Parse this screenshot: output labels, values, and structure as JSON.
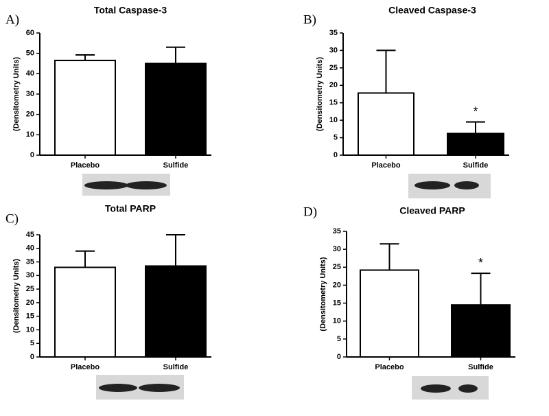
{
  "chart_data": [
    {
      "type": "bar",
      "panel": "A)",
      "title": "Total Caspase-3",
      "ylabel": "(Densitometry Units)",
      "categories": [
        "Placebo",
        "Sulfide"
      ],
      "values": [
        46.5,
        45
      ],
      "errors": [
        2.7,
        8
      ],
      "colors": [
        "#ffffff",
        "#000000"
      ],
      "annotations": [
        null,
        null
      ],
      "ylim": [
        0,
        60
      ],
      "yticks": [
        0,
        10,
        20,
        30,
        40,
        50,
        60
      ]
    },
    {
      "type": "bar",
      "panel": "B)",
      "title": "Cleaved Caspase-3",
      "ylabel": "(Densitometry Units)",
      "categories": [
        "Placebo",
        "Sulfide"
      ],
      "values": [
        17.8,
        6.2
      ],
      "errors": [
        12.2,
        3.3
      ],
      "colors": [
        "#ffffff",
        "#000000"
      ],
      "annotations": [
        null,
        "*"
      ],
      "ylim": [
        0,
        35
      ],
      "yticks": [
        0,
        5,
        10,
        15,
        20,
        25,
        30,
        35
      ]
    },
    {
      "type": "bar",
      "panel": "C)",
      "title": "Total PARP",
      "ylabel": "(Densitometry Units)",
      "categories": [
        "Placebo",
        "Sulfide"
      ],
      "values": [
        33,
        33.5
      ],
      "errors": [
        6,
        11.5
      ],
      "colors": [
        "#ffffff",
        "#000000"
      ],
      "annotations": [
        null,
        null
      ],
      "ylim": [
        0,
        45
      ],
      "yticks": [
        0,
        5,
        10,
        15,
        20,
        25,
        30,
        35,
        40,
        45
      ]
    },
    {
      "type": "bar",
      "panel": "D)",
      "title": "Cleaved PARP",
      "ylabel": "(Densitometry Units)",
      "categories": [
        "Placebo",
        "Sulfide"
      ],
      "values": [
        24.2,
        14.5
      ],
      "errors": [
        7.3,
        8.8
      ],
      "colors": [
        "#ffffff",
        "#000000"
      ],
      "annotations": [
        null,
        "*"
      ],
      "ylim": [
        0,
        35
      ],
      "yticks": [
        0,
        5,
        10,
        15,
        20,
        25,
        30,
        35
      ]
    }
  ]
}
